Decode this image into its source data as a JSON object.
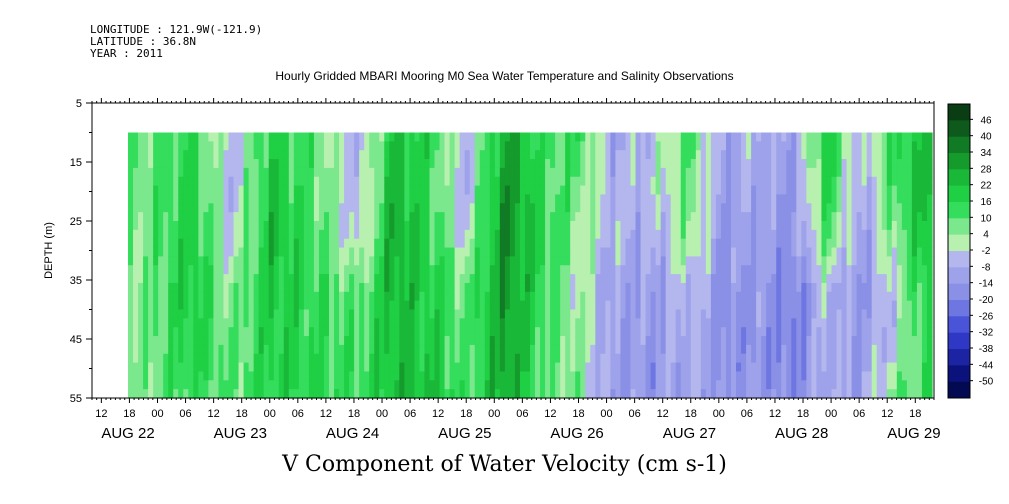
{
  "meta": {
    "longitude": "LONGITUDE : 121.9W(-121.9)",
    "latitude": "LATITUDE : 36.8N",
    "year": "YEAR : 2011"
  },
  "chart_data": {
    "type": "heatmap",
    "title": "Hourly Gridded MBARI Mooring M0 Sea Water Temperature and Salinity Observations",
    "xlabel": "",
    "ylabel": "DEPTH (m)",
    "footer": "V Component of Water Velocity (cm s-1)",
    "y_ticks": [
      "5",
      "15",
      "25",
      "35",
      "45",
      "55"
    ],
    "y_range": [
      5,
      55
    ],
    "y_reversed": true,
    "data_depth_range": [
      10,
      55
    ],
    "x_range_hours": [
      0,
      180
    ],
    "x_hour_tick_labels": [
      "12",
      "18",
      "00",
      "06",
      "12",
      "18",
      "00",
      "06",
      "12",
      "18",
      "00",
      "06",
      "12",
      "18",
      "00",
      "06",
      "12",
      "18",
      "00",
      "06",
      "12",
      "18",
      "00",
      "06",
      "12",
      "18",
      "00",
      "06",
      "12",
      "18",
      "00",
      "06"
    ],
    "x_date_labels": [
      "AUG 22",
      "AUG 23",
      "AUG 24",
      "AUG 25",
      "AUG 26",
      "AUG 27",
      "AUG 28",
      "AUG 29"
    ],
    "colorbar_labels": [
      "46",
      "40",
      "34",
      "28",
      "22",
      "16",
      "10",
      "4",
      "-2",
      "-8",
      "-14",
      "-20",
      "-26",
      "-32",
      "-38",
      "-44",
      "-50"
    ],
    "colorbar_colors": [
      "#0a3d14",
      "#0e5a1c",
      "#117a24",
      "#159a2c",
      "#1ab838",
      "#1fcf44",
      "#34dd5c",
      "#7ce88e",
      "#b8f0b0",
      "#b4b6ee",
      "#9ea2ea",
      "#8a90e6",
      "#6e76e2",
      "#4a54d8",
      "#2f38c4",
      "#1c24a4",
      "#0c127c",
      "#040a52"
    ],
    "series": [
      {
        "time_fraction": [
          0.02,
          0.08,
          0.13,
          0.18,
          0.24,
          0.29,
          0.33,
          0.38,
          0.42,
          0.47,
          0.52,
          0.56,
          0.6,
          0.65,
          0.7,
          0.74,
          0.78,
          0.83,
          0.87,
          0.91,
          0.95,
          0.99
        ],
        "velocity_profile_shallow_to_deep": [
          [
            8,
            8,
            7,
            6,
            6,
            5
          ],
          [
            14,
            16,
            18,
            20,
            17,
            14
          ],
          [
            -4,
            -6,
            -4,
            4,
            6,
            8
          ],
          [
            18,
            20,
            22,
            20,
            18,
            16
          ],
          [
            6,
            8,
            10,
            12,
            14,
            14
          ],
          [
            -8,
            -6,
            -4,
            8,
            10,
            12
          ],
          [
            20,
            24,
            26,
            24,
            22,
            22
          ],
          [
            14,
            12,
            14,
            16,
            18,
            20
          ],
          [
            -6,
            -8,
            -2,
            6,
            8,
            10
          ],
          [
            26,
            30,
            32,
            30,
            28,
            26
          ],
          [
            10,
            12,
            14,
            12,
            10,
            8
          ],
          [
            14,
            8,
            4,
            2,
            4,
            6
          ],
          [
            -8,
            -6,
            -6,
            -10,
            -10,
            -12
          ],
          [
            -6,
            -4,
            -10,
            -12,
            -14,
            -14
          ],
          [
            10,
            8,
            6,
            -4,
            -6,
            -8
          ],
          [
            -10,
            -12,
            -14,
            -16,
            -16,
            -14
          ],
          [
            -6,
            -8,
            -10,
            -12,
            -14,
            -12
          ],
          [
            -10,
            -12,
            -14,
            -18,
            -20,
            -16
          ],
          [
            20,
            16,
            10,
            -4,
            -6,
            -8
          ],
          [
            -8,
            -10,
            -12,
            -14,
            -12,
            -10
          ],
          [
            12,
            10,
            4,
            -2,
            -4,
            6
          ],
          [
            20,
            24,
            20,
            16,
            14,
            12
          ]
        ]
      }
    ]
  }
}
